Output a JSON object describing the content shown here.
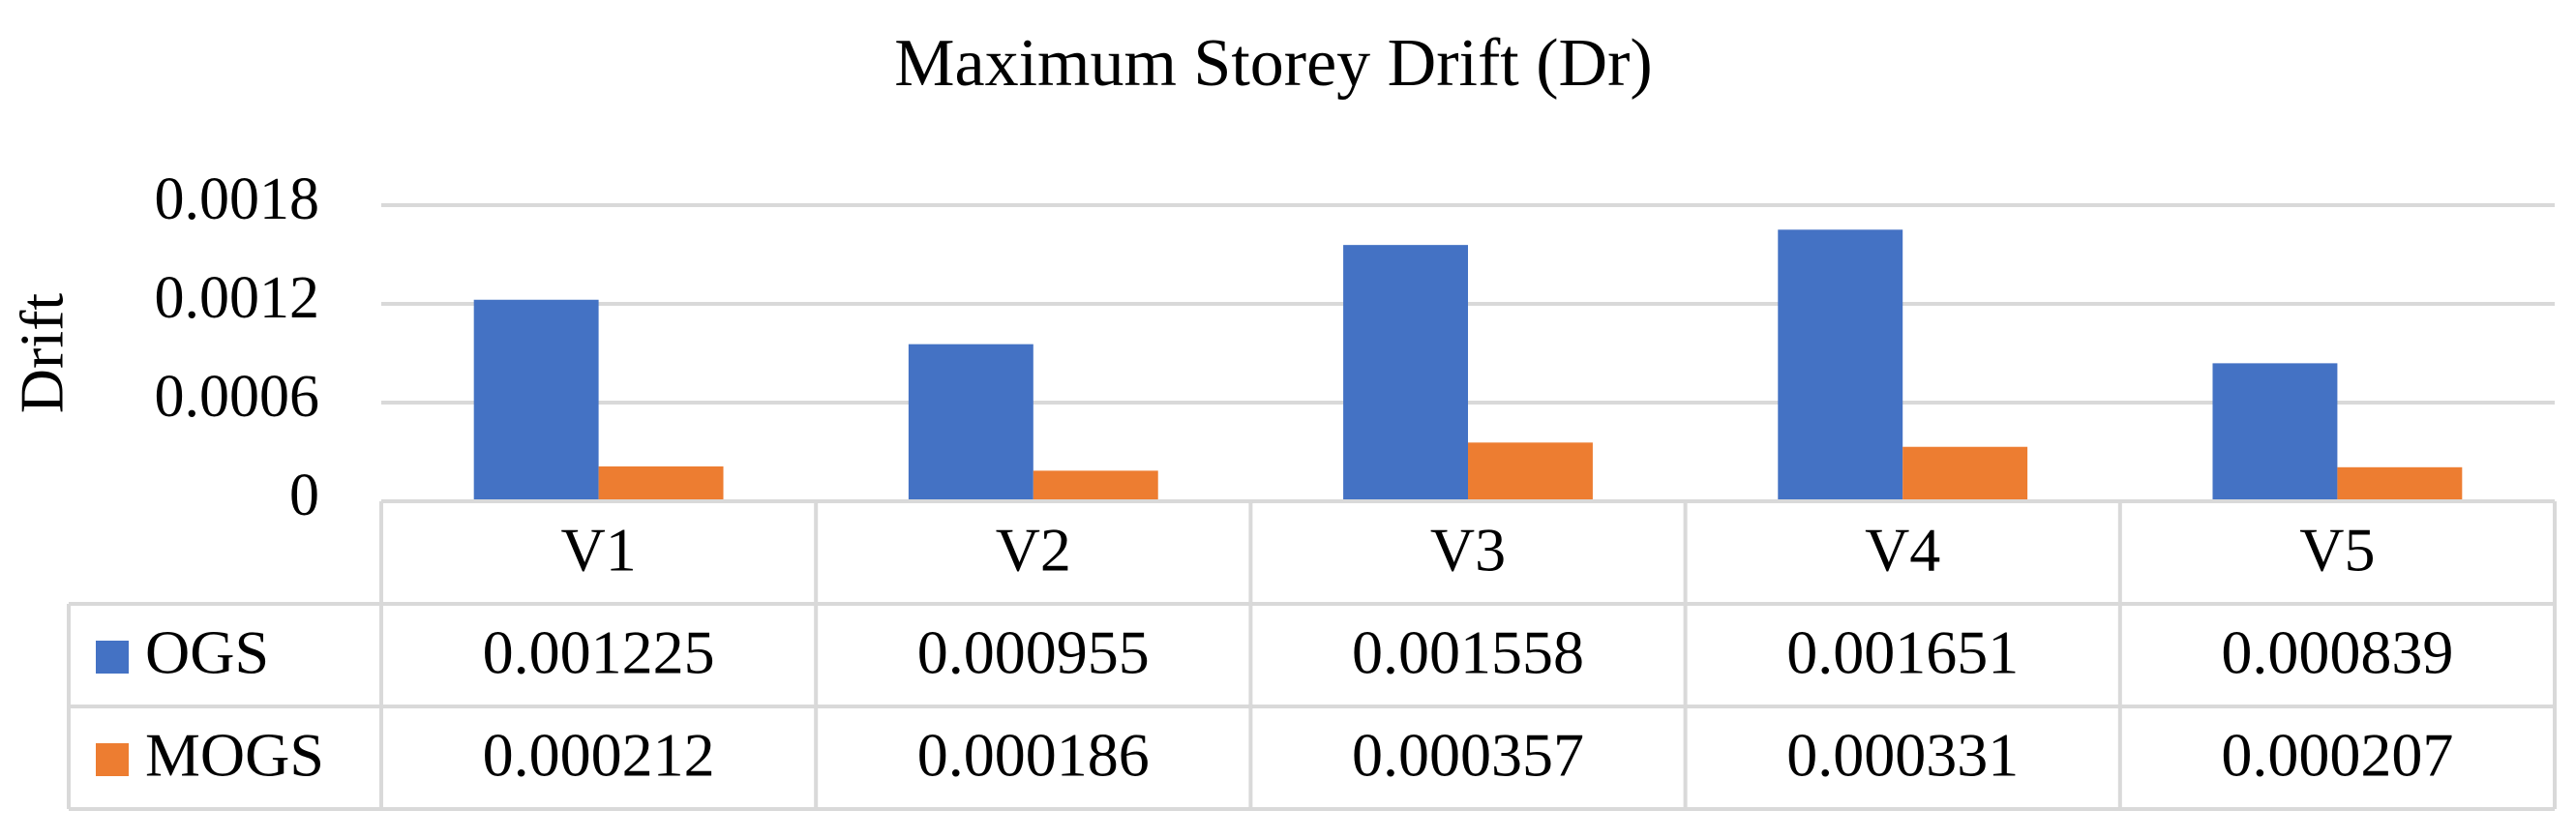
{
  "chart_data": {
    "type": "bar",
    "title": "Maximum Storey Drift (Dr)",
    "y_label": "Drift",
    "categories": [
      "V1",
      "V2",
      "V3",
      "V4",
      "V5"
    ],
    "series": [
      {
        "name": "OGS",
        "color": "#4472c4",
        "values": [
          0.001225,
          0.000955,
          0.001558,
          0.001651,
          0.000839
        ]
      },
      {
        "name": "MOGS",
        "color": "#ed7d31",
        "values": [
          0.000212,
          0.000186,
          0.000357,
          0.000331,
          0.000207
        ]
      }
    ],
    "ylim": [
      0,
      0.0018
    ],
    "yticks": [
      0,
      0.0006,
      0.0012,
      0.0018
    ],
    "grid": true,
    "data_table": true
  }
}
